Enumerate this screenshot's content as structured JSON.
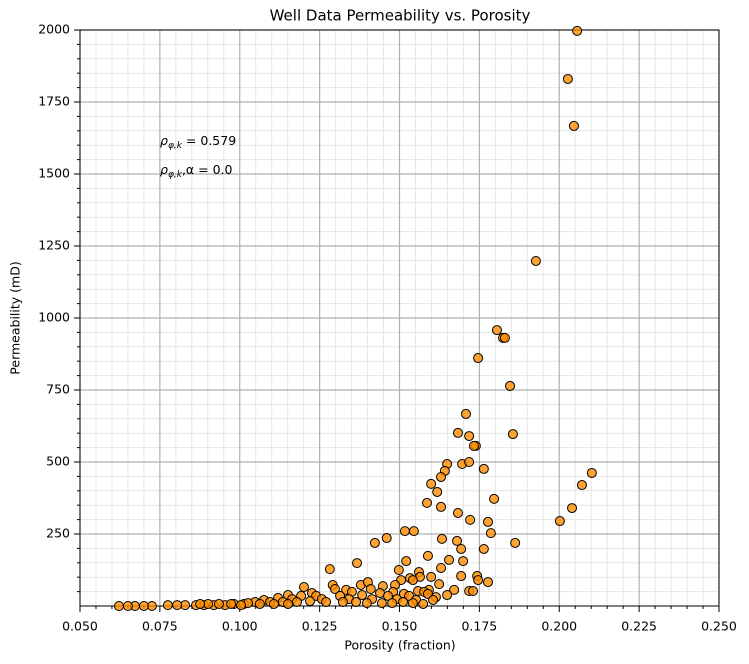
{
  "chart_data": {
    "type": "scatter",
    "title": "Well Data Permeability vs. Porosity",
    "x_label": "Porosity (fraction)",
    "y_label": "Permeability (mD)",
    "annotations": [
      {
        "text": "ρ",
        "sub": "φ,k",
        "rest": " = 0.579"
      },
      {
        "text": "ρ",
        "sub": "φ,k",
        "rest": ",α = 0.0"
      }
    ],
    "color": "#ff8c00",
    "edge_color": "#000000",
    "grid": true,
    "minor_grid": true,
    "xlim": [
      0.05,
      0.25
    ],
    "ylim": [
      0,
      2000
    ],
    "xticks": [
      {
        "value": 0.05,
        "label": "0.050"
      },
      {
        "value": 0.075,
        "label": "0.075"
      },
      {
        "value": 0.1,
        "label": "0.100"
      },
      {
        "value": 0.125,
        "label": "0.125"
      },
      {
        "value": 0.15,
        "label": "0.150"
      },
      {
        "value": 0.175,
        "label": "0.175"
      },
      {
        "value": 0.2,
        "label": "0.200"
      },
      {
        "value": 0.225,
        "label": "0.225"
      },
      {
        "value": 0.25,
        "label": "0.250"
      }
    ],
    "yticks": [
      250,
      500,
      750,
      1000,
      1250,
      1500,
      1750,
      2000
    ],
    "xminorticks": [
      0.055,
      0.06,
      0.065,
      0.07,
      0.08,
      0.085,
      0.09,
      0.095,
      0.105,
      0.11,
      0.115,
      0.12,
      0.13,
      0.135,
      0.14,
      0.145,
      0.155,
      0.16,
      0.165,
      0.17,
      0.18,
      0.185,
      0.19,
      0.195,
      0.205,
      0.21,
      0.215,
      0.22,
      0.23,
      0.235,
      0.24,
      0.245
    ],
    "yminorticks": [
      50,
      100,
      150,
      200,
      300,
      350,
      400,
      450,
      550,
      600,
      650,
      700,
      800,
      850,
      900,
      950,
      1050,
      1100,
      1150,
      1200,
      1300,
      1350,
      1400,
      1450,
      1550,
      1600,
      1650,
      1700,
      1800,
      1850,
      1900,
      1950
    ],
    "x": [
      0.2056,
      0.2027,
      0.2046,
      0.1927,
      0.1805,
      0.1824,
      0.183,
      0.1746,
      0.1846,
      0.1708,
      0.1718,
      0.1683,
      0.1855,
      0.1739,
      0.1733,
      0.1649,
      0.1696,
      0.1718,
      0.1642,
      0.1764,
      0.2102,
      0.163,
      0.2071,
      0.1599,
      0.1618,
      0.1796,
      0.1586,
      0.163,
      0.204,
      0.1683,
      0.1721,
      0.1777,
      0.2002,
      0.1517,
      0.1545,
      0.1786,
      0.146,
      0.1633,
      0.168,
      0.1423,
      0.1862,
      0.1693,
      0.1764,
      0.1589,
      0.1655,
      0.1521,
      0.1699,
      0.1367,
      0.1498,
      0.1282,
      0.163,
      0.1561,
      0.1693,
      0.1743,
      0.1599,
      0.1533,
      0.1564,
      0.1777,
      0.1746,
      0.1505,
      0.1624,
      0.1201,
      0.1291,
      0.1379,
      0.1401,
      0.1448,
      0.1486,
      0.1542,
      0.1671,
      0.1718,
      0.173,
      0.1592,
      0.1333,
      0.1226,
      0.1298,
      0.141,
      0.148,
      0.1558,
      0.1577,
      0.1589,
      0.1514,
      0.1351,
      0.1439,
      0.1151,
      0.1239,
      0.1192,
      0.1314,
      0.1383,
      0.1464,
      0.153,
      0.1614,
      0.1649,
      0.112,
      0.1164,
      0.1076,
      0.1257,
      0.1342,
      0.1414,
      0.1492,
      0.1552,
      0.1605,
      0.1048,
      0.1095,
      0.1135,
      0.1179,
      0.122,
      0.127,
      0.1323,
      0.1364,
      0.1398,
      0.1445,
      0.1477,
      0.1511,
      0.1542,
      0.1574,
      0.0982,
      0.1013,
      0.1026,
      0.1063,
      0.1107,
      0.1151,
      0.0954,
      0.0919,
      0.0888,
      0.0863,
      0.0829,
      0.0804,
      0.0775,
      0.1004,
      0.0725,
      0.07,
      0.0672,
      0.065,
      0.0622,
      0.0935,
      0.0901,
      0.0876,
      0.0973
    ],
    "values": [
      1997,
      1830,
      1667,
      1198,
      958,
      931,
      931,
      861,
      764,
      667,
      590,
      601,
      597,
      556,
      556,
      493,
      493,
      500,
      469,
      476,
      462,
      448,
      420,
      424,
      396,
      372,
      358,
      344,
      340,
      323,
      299,
      292,
      295,
      260,
      260,
      253,
      236,
      233,
      226,
      219,
      219,
      198,
      198,
      174,
      160,
      156,
      156,
      149,
      125,
      128,
      132,
      118,
      104,
      104,
      101,
      97,
      101,
      83,
      90,
      90,
      76,
      66,
      73,
      73,
      83,
      69,
      73,
      90,
      56,
      52,
      52,
      56,
      56,
      45,
      59,
      59,
      49,
      52,
      49,
      42,
      42,
      49,
      45,
      38,
      35,
      35,
      35,
      38,
      35,
      35,
      31,
      38,
      28,
      24,
      21,
      24,
      24,
      24,
      24,
      21,
      21,
      14,
      14,
      14,
      14,
      17,
      14,
      14,
      14,
      10,
      10,
      10,
      14,
      10,
      7,
      7,
      7,
      10,
      7,
      7,
      7,
      3,
      3,
      3,
      3,
      3,
      3,
      3,
      3,
      0,
      0,
      0,
      0,
      0,
      7,
      7,
      7,
      7
    ]
  }
}
